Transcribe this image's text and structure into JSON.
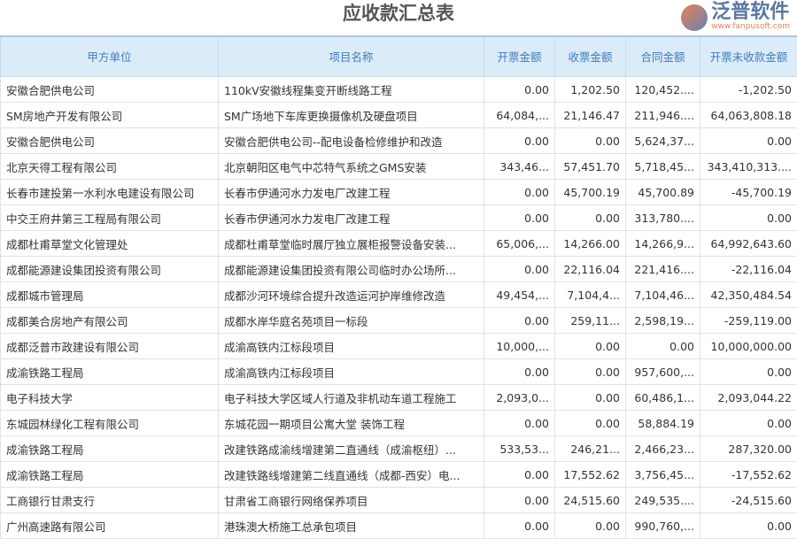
{
  "title": "应收款汇总表",
  "columns": [
    "甲方单位",
    "项目名称",
    "开票金额",
    "收票金额",
    "合同金额",
    "开票未收款金额"
  ],
  "rows": [
    [
      "安徽合肥供电公司",
      "110kV安徽线程集变开断线路工程",
      "0.00",
      "1,202.50",
      "120,452....",
      "-1,202.50"
    ],
    [
      "SM房地产开发有限公司",
      "SM广场地下车库更换摄像机及硬盘项目",
      "64,084,...",
      "21,146.47",
      "211,946....",
      "64,063,808.18"
    ],
    [
      "安徽合肥供电公司",
      "安徽合肥供电公司--配电设备检修维护和改造",
      "0.00",
      "0.00",
      "5,624,37...",
      "0.00"
    ],
    [
      "北京天得工程有限公司",
      "北京朝阳区电气中芯特气系统之GMS安装",
      "343,46...",
      "57,451.70",
      "5,718,45...",
      "343,410,313...."
    ],
    [
      "长春市建投第一水利水电建设有限公司",
      "长春市伊通河水力发电厂改建工程",
      "0.00",
      "45,700.19",
      "45,700.89",
      "-45,700.19"
    ],
    [
      "中交王府井第三工程局有限公司",
      "长春市伊通河水力发电厂改建工程",
      "0.00",
      "0.00",
      "313,780....",
      "0.00"
    ],
    [
      "成都杜甫草堂文化管理处",
      "成都杜甫草堂临时展厅独立展柜报警设备安装...",
      "65,006,...",
      "14,266.00",
      "14,266,9...",
      "64,992,643.60"
    ],
    [
      "成都能源建设集团投资有限公司",
      "成都能源建设集团投资有限公司临时办公场所...",
      "0.00",
      "22,116.04",
      "221,416....",
      "-22,116.04"
    ],
    [
      "成都城市管理局",
      "成都沙河环境综合提升改造运河护岸维修改造",
      "49,454,...",
      "7,104,4...",
      "7,104,46...",
      "42,350,484.54"
    ],
    [
      "成都美合房地产有限公司",
      "成都水岸华庭名苑项目一标段",
      "0.00",
      "259,11...",
      "2,598,19...",
      "-259,119.00"
    ],
    [
      "成都泛普市政建设有限公司",
      "成渝高铁内江标段项目",
      "10,000,...",
      "0.00",
      "0.00",
      "10,000,000.00"
    ],
    [
      "成渝铁路工程局",
      "成渝高铁内江标段项目",
      "0.00",
      "0.00",
      "957,600,...",
      "0.00"
    ],
    [
      "电子科技大学",
      "电子科技大学区域人行道及非机动车道工程施工",
      "2,093,0...",
      "0.00",
      "60,486,1...",
      "2,093,044.22"
    ],
    [
      "东城园林绿化工程有限公司",
      "东城花园一期项目公寓大堂 装饰工程",
      "0.00",
      "0.00",
      "58,884.19",
      "0.00"
    ],
    [
      "成渝铁路工程局",
      "改建铁路成渝线增建第二直通线（成渝枢纽）...",
      "533,53...",
      "246,21...",
      "2,466,23...",
      "287,320.00"
    ],
    [
      "成渝铁路工程局",
      "改建铁路线增建第二线直通线（成都-西安）电...",
      "0.00",
      "17,552.62",
      "3,756,45...",
      "-17,552.62"
    ],
    [
      "工商银行甘肃支行",
      "甘肃省工商银行网络保养项目",
      "0.00",
      "24,515.60",
      "249,535....",
      "-24,515.60"
    ],
    [
      "广州高速路有限公司",
      "港珠澳大桥施工总承包项目",
      "0.00",
      "0.00",
      "990,760,...",
      "0.00"
    ]
  ],
  "watermark": {
    "brand": "泛普软件",
    "url": "www.fanpusoft.com"
  }
}
